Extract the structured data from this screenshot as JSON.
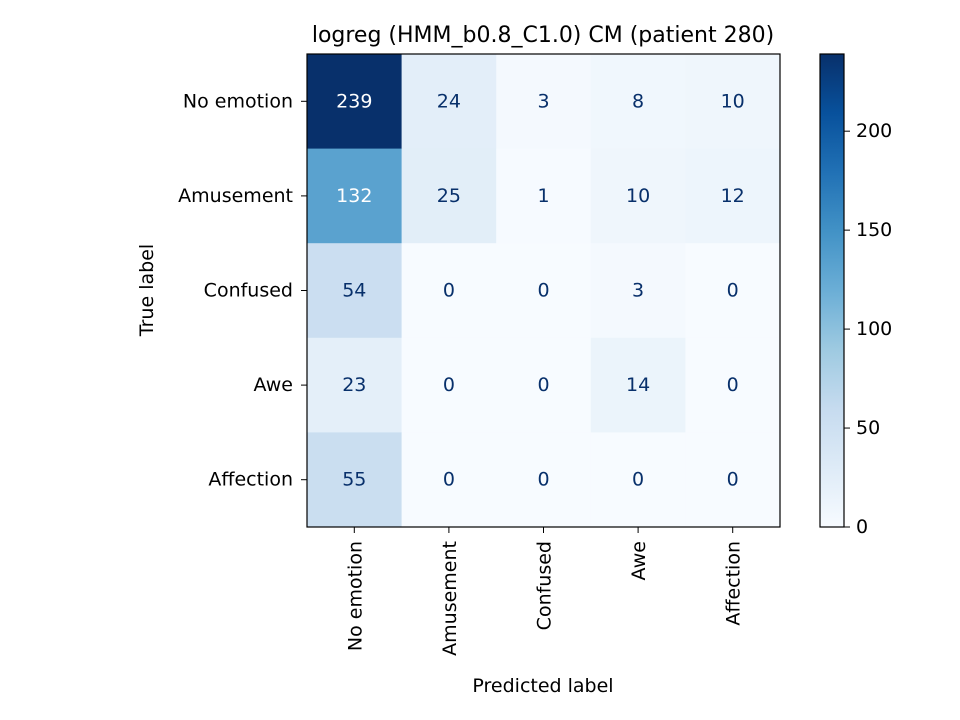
{
  "chart_data": {
    "type": "heatmap",
    "title": "logreg (HMM_b0.8_C1.0) CM (patient 280)",
    "xlabel": "Predicted label",
    "ylabel": "True label",
    "row_labels": [
      "No emotion",
      "Amusement",
      "Confused",
      "Awe",
      "Affection"
    ],
    "col_labels": [
      "No emotion",
      "Amusement",
      "Confused",
      "Awe",
      "Affection"
    ],
    "matrix": [
      [
        239,
        24,
        3,
        8,
        10
      ],
      [
        132,
        25,
        1,
        10,
        12
      ],
      [
        54,
        0,
        0,
        3,
        0
      ],
      [
        23,
        0,
        0,
        14,
        0
      ],
      [
        55,
        0,
        0,
        0,
        0
      ]
    ],
    "colorscale": "Blues",
    "vmin": 0,
    "vmax": 239,
    "colorbar_ticks": [
      0,
      50,
      100,
      150,
      200
    ]
  }
}
